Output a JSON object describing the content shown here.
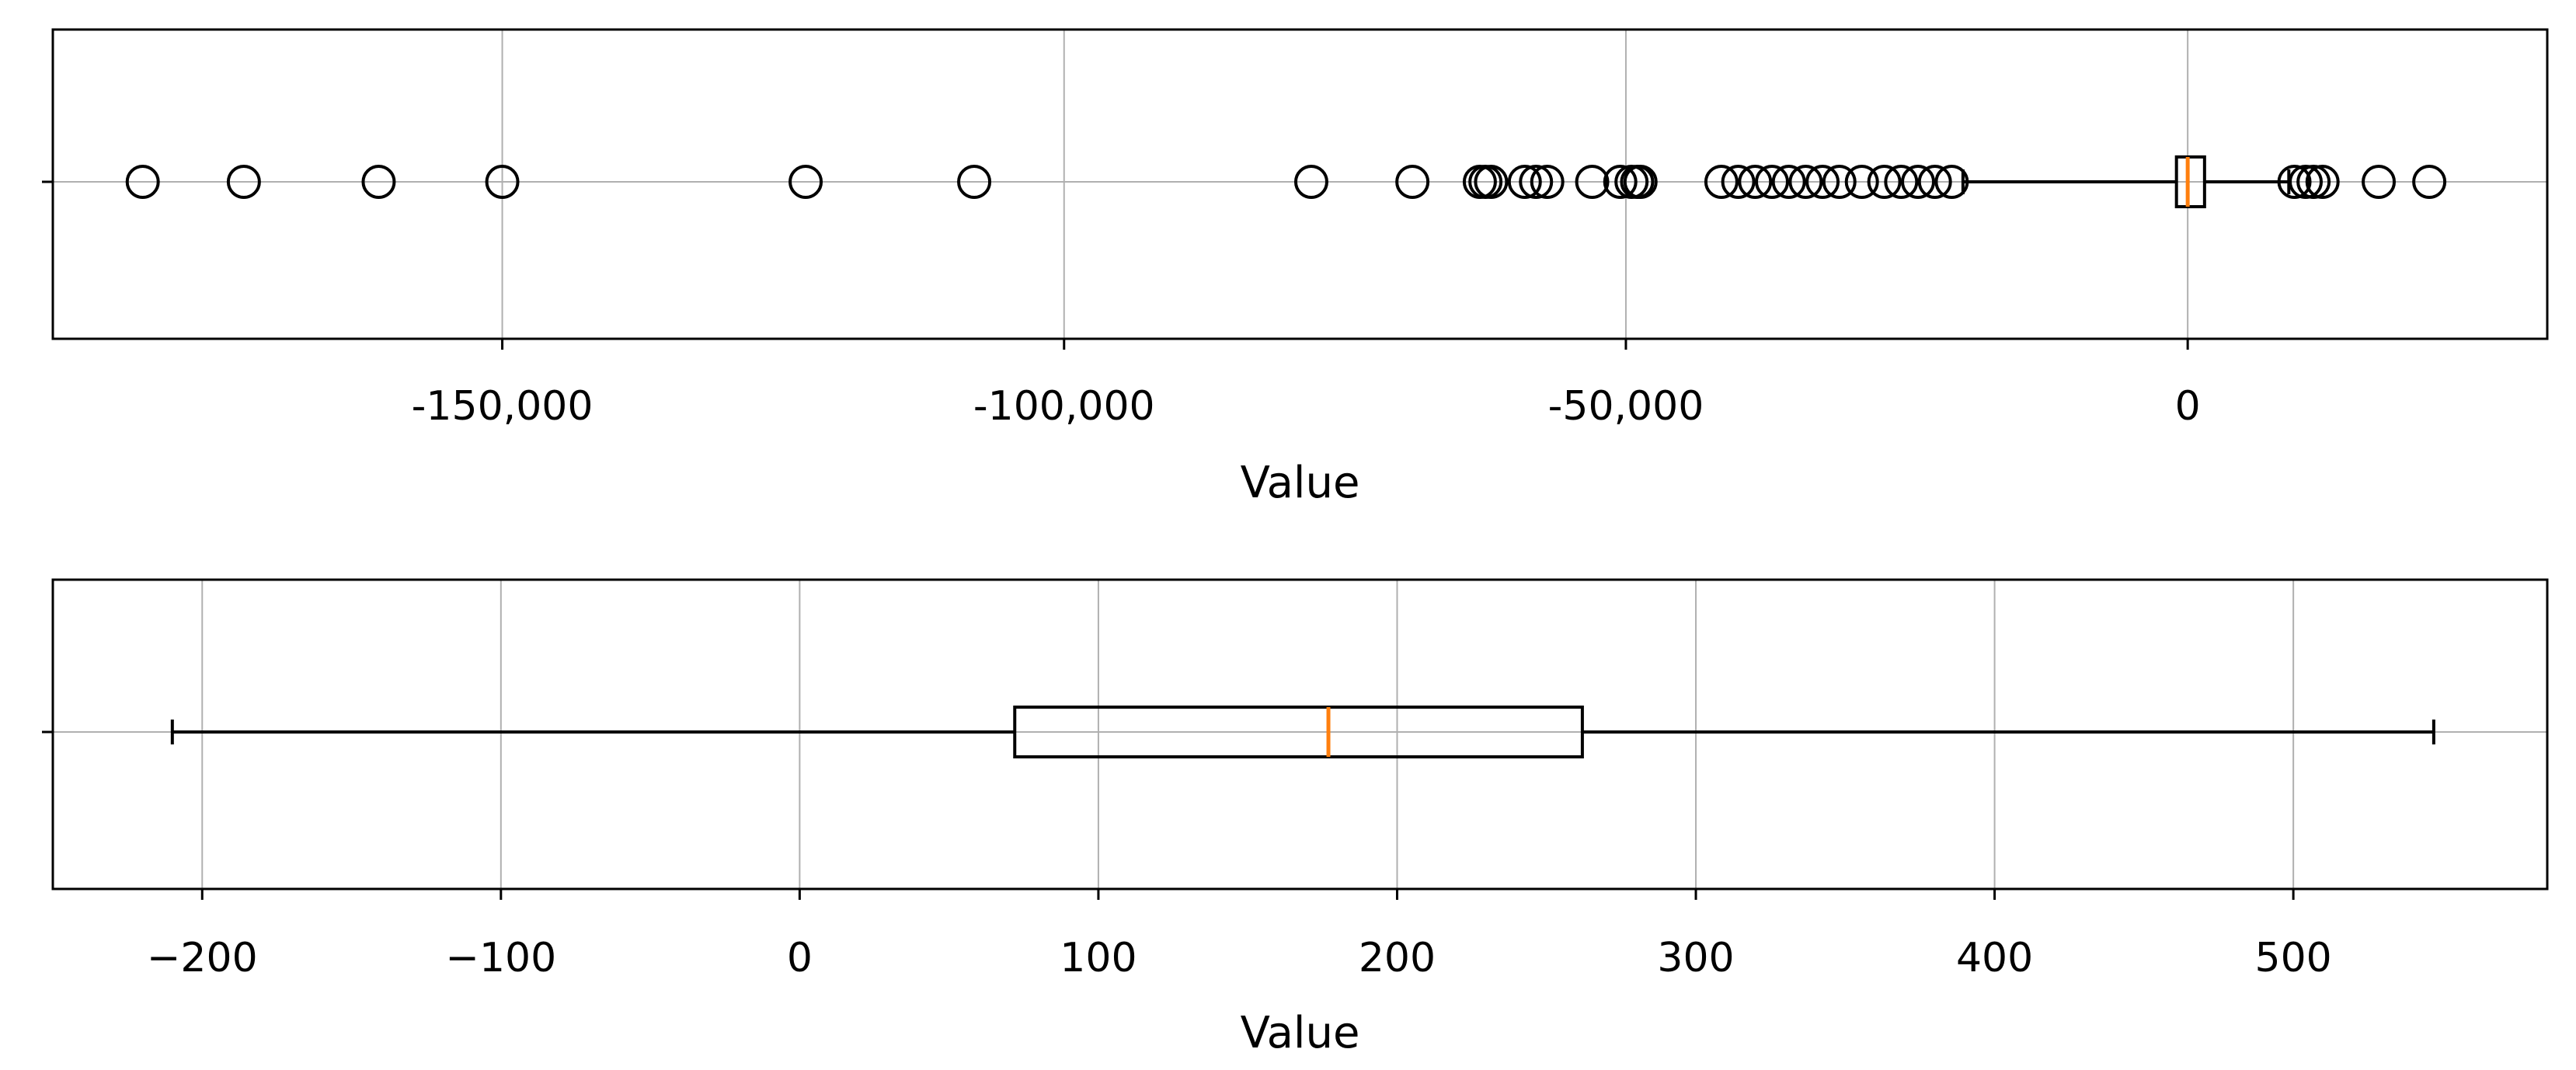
{
  "chart_data": [
    {
      "type": "box",
      "orientation": "horizontal",
      "title": "",
      "xlabel": "Value",
      "ylabel": "",
      "xlim": [
        -190000,
        32000
      ],
      "grid": true,
      "xticks": [
        -150000,
        -100000,
        -50000,
        0
      ],
      "xtick_labels": [
        "-150,000",
        "-100,000",
        "-50,000",
        "0"
      ],
      "box": {
        "whisker_low": -20000,
        "q1": -1000,
        "median": 0,
        "q3": 1500,
        "whisker_high": 9000
      },
      "outliers": [
        -182000,
        -173000,
        -161000,
        -150000,
        -123000,
        -108000,
        -78000,
        -69000,
        -63000,
        -62500,
        -62000,
        -59000,
        -58000,
        -57000,
        -53000,
        -50500,
        -49500,
        -49000,
        -48700,
        -41500,
        -40000,
        -38500,
        -37000,
        -35500,
        -34000,
        -32500,
        -31000,
        -29000,
        -27000,
        -25500,
        -24000,
        -22500,
        -21000,
        9500,
        10500,
        11200,
        12000,
        17000,
        21500
      ],
      "colors": {
        "median": "#ff7f0e",
        "box": "#000000",
        "grid": "#b0b0b0"
      }
    },
    {
      "type": "box",
      "orientation": "horizontal",
      "title": "",
      "xlabel": "Value",
      "ylabel": "",
      "xlim": [
        -250,
        585
      ],
      "grid": true,
      "xticks": [
        -200,
        -100,
        0,
        100,
        200,
        300,
        400,
        500
      ],
      "xtick_labels": [
        "−200",
        "−100",
        "0",
        "100",
        "200",
        "300",
        "400",
        "500"
      ],
      "box": {
        "whisker_low": -210,
        "q1": 72,
        "median": 177,
        "q3": 262,
        "whisker_high": 547
      },
      "outliers": [],
      "colors": {
        "median": "#ff7f0e",
        "box": "#000000",
        "grid": "#b0b0b0"
      }
    }
  ]
}
